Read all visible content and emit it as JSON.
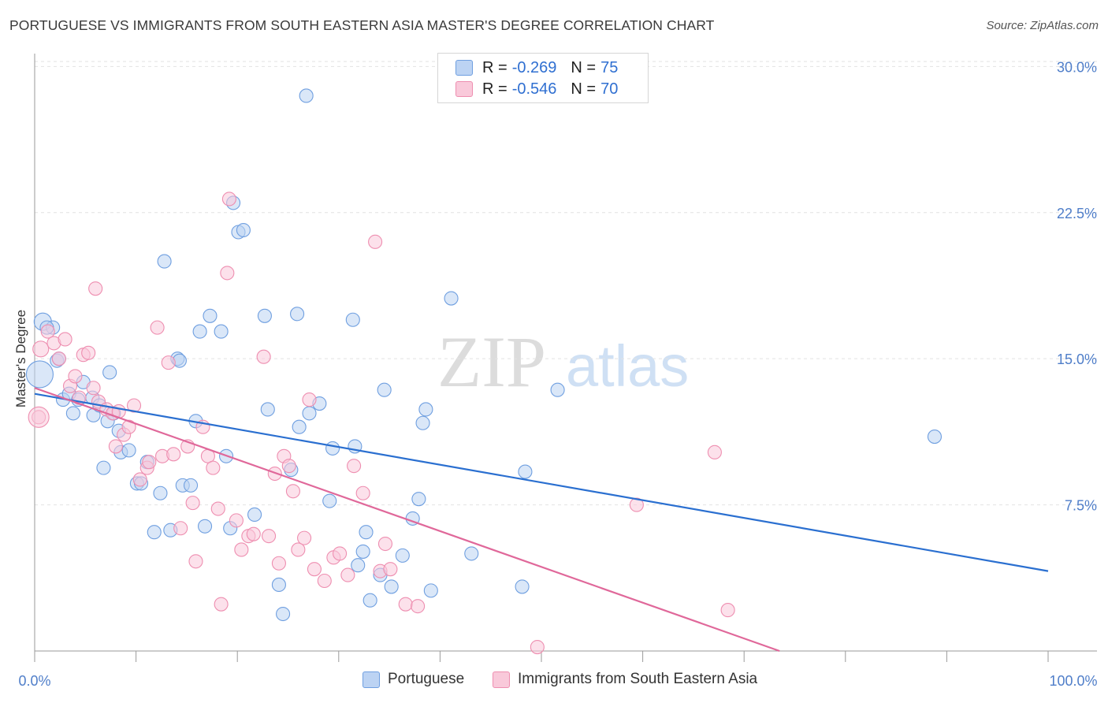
{
  "header": {
    "title": "PORTUGUESE VS IMMIGRANTS FROM SOUTH EASTERN ASIA MASTER'S DEGREE CORRELATION CHART",
    "source": "Source: ZipAtlas.com"
  },
  "legend": {
    "rows": [
      {
        "r_label": "R =",
        "r_value": "-0.269",
        "n_label": "N =",
        "n_value": "75"
      },
      {
        "r_label": "R =",
        "r_value": "-0.546",
        "n_label": "N =",
        "n_value": "70"
      }
    ]
  },
  "bottom_legend": {
    "series1": "Portuguese",
    "series2": "Immigrants from South Eastern Asia"
  },
  "watermark": {
    "zip": "ZIP",
    "atlas": "atlas"
  },
  "chart_data": {
    "type": "scatter",
    "title": "PORTUGUESE VS IMMIGRANTS FROM SOUTH EASTERN ASIA MASTER'S DEGREE CORRELATION CHART",
    "xlabel": "",
    "ylabel": "Master's Degree",
    "xlim": [
      0,
      100
    ],
    "ylim": [
      0,
      30.5
    ],
    "x_tick_labels": [
      "0.0%",
      "100.0%"
    ],
    "y_ticks": [
      7.5,
      15.0,
      22.5,
      30.0
    ],
    "y_tick_labels": [
      "7.5%",
      "15.0%",
      "22.5%",
      "30.0%"
    ],
    "colors": {
      "blue": "#6f9fe0",
      "pink": "#ee8eb0",
      "blue_line": "#2a6fd0",
      "pink_line": "#e0689a"
    },
    "series": [
      {
        "name": "Portuguese",
        "color": "blue",
        "trend": {
          "x0": 0,
          "y0": 13.2,
          "x1": 100,
          "y1": 4.1
        },
        "points": [
          [
            0.8,
            16.9
          ],
          [
            1.8,
            16.6
          ],
          [
            2.2,
            14.9
          ],
          [
            2.8,
            12.9
          ],
          [
            3.4,
            13.2
          ],
          [
            3.8,
            12.2
          ],
          [
            4.3,
            12.9
          ],
          [
            4.8,
            13.8
          ],
          [
            5.7,
            13.0
          ],
          [
            5.8,
            12.1
          ],
          [
            6.4,
            12.6
          ],
          [
            7.2,
            11.8
          ],
          [
            7.8,
            12.2
          ],
          [
            8.3,
            11.3
          ],
          [
            8.5,
            10.2
          ],
          [
            6.8,
            9.4
          ],
          [
            9.3,
            10.3
          ],
          [
            10.1,
            8.6
          ],
          [
            10.5,
            8.6
          ],
          [
            11.1,
            9.7
          ],
          [
            12.4,
            8.1
          ],
          [
            11.8,
            6.1
          ],
          [
            13.4,
            6.2
          ],
          [
            14.1,
            15.0
          ],
          [
            14.3,
            14.9
          ],
          [
            14.6,
            8.5
          ],
          [
            15.4,
            8.5
          ],
          [
            15.9,
            11.8
          ],
          [
            16.3,
            16.4
          ],
          [
            16.8,
            6.4
          ],
          [
            17.3,
            17.2
          ],
          [
            18.4,
            16.4
          ],
          [
            18.9,
            10.0
          ],
          [
            19.3,
            6.3
          ],
          [
            19.6,
            23.0
          ],
          [
            20.1,
            21.5
          ],
          [
            20.6,
            21.6
          ],
          [
            21.7,
            7.0
          ],
          [
            22.7,
            17.2
          ],
          [
            23.0,
            12.4
          ],
          [
            24.1,
            3.4
          ],
          [
            24.5,
            1.9
          ],
          [
            25.3,
            9.3
          ],
          [
            25.9,
            17.3
          ],
          [
            26.1,
            11.5
          ],
          [
            27.1,
            12.2
          ],
          [
            26.8,
            28.5
          ],
          [
            28.1,
            12.7
          ],
          [
            29.1,
            7.7
          ],
          [
            29.4,
            10.4
          ],
          [
            31.4,
            17.0
          ],
          [
            31.6,
            10.5
          ],
          [
            31.9,
            4.4
          ],
          [
            32.4,
            5.1
          ],
          [
            32.7,
            6.1
          ],
          [
            33.1,
            2.6
          ],
          [
            34.1,
            3.9
          ],
          [
            34.5,
            13.4
          ],
          [
            35.2,
            3.3
          ],
          [
            36.3,
            4.9
          ],
          [
            37.3,
            6.8
          ],
          [
            37.9,
            7.8
          ],
          [
            38.3,
            11.7
          ],
          [
            38.6,
            12.4
          ],
          [
            39.1,
            3.1
          ],
          [
            41.1,
            18.1
          ],
          [
            43.1,
            5.0
          ],
          [
            48.4,
            9.2
          ],
          [
            48.1,
            3.3
          ],
          [
            51.6,
            13.4
          ],
          [
            88.8,
            11.0
          ],
          [
            12.8,
            20.0
          ],
          [
            7.4,
            14.3
          ],
          [
            1.2,
            16.6
          ],
          [
            2.4,
            15.0
          ]
        ]
      },
      {
        "name": "Immigrants from South Eastern Asia",
        "color": "pink",
        "trend": {
          "x0": 0,
          "y0": 13.5,
          "x1": 73.5,
          "y1": 0
        },
        "points": [
          [
            0.6,
            15.5
          ],
          [
            1.3,
            16.4
          ],
          [
            1.9,
            15.8
          ],
          [
            2.4,
            15.0
          ],
          [
            3.0,
            16.0
          ],
          [
            3.5,
            13.6
          ],
          [
            4.0,
            14.1
          ],
          [
            4.4,
            13.0
          ],
          [
            4.8,
            15.2
          ],
          [
            5.3,
            15.3
          ],
          [
            5.8,
            13.5
          ],
          [
            6.3,
            12.8
          ],
          [
            7.1,
            12.4
          ],
          [
            7.7,
            12.2
          ],
          [
            8.3,
            12.3
          ],
          [
            8.8,
            11.1
          ],
          [
            9.3,
            11.5
          ],
          [
            9.8,
            12.6
          ],
          [
            10.4,
            8.8
          ],
          [
            11.1,
            9.4
          ],
          [
            11.3,
            9.7
          ],
          [
            12.1,
            16.6
          ],
          [
            12.6,
            10.0
          ],
          [
            13.2,
            14.8
          ],
          [
            13.7,
            10.1
          ],
          [
            14.4,
            6.3
          ],
          [
            15.1,
            10.5
          ],
          [
            15.6,
            7.6
          ],
          [
            15.9,
            4.6
          ],
          [
            16.6,
            11.5
          ],
          [
            17.1,
            10.0
          ],
          [
            17.6,
            9.4
          ],
          [
            18.1,
            7.3
          ],
          [
            18.4,
            2.4
          ],
          [
            19.0,
            19.4
          ],
          [
            19.2,
            23.2
          ],
          [
            19.9,
            6.7
          ],
          [
            20.4,
            5.2
          ],
          [
            21.1,
            5.9
          ],
          [
            21.6,
            6.0
          ],
          [
            22.6,
            15.1
          ],
          [
            23.1,
            5.9
          ],
          [
            23.7,
            9.1
          ],
          [
            24.1,
            4.5
          ],
          [
            24.6,
            10.0
          ],
          [
            25.1,
            9.5
          ],
          [
            25.5,
            8.2
          ],
          [
            26.0,
            5.2
          ],
          [
            26.6,
            5.8
          ],
          [
            27.6,
            4.2
          ],
          [
            27.1,
            12.9
          ],
          [
            28.6,
            3.6
          ],
          [
            29.5,
            4.8
          ],
          [
            30.1,
            5.0
          ],
          [
            30.9,
            3.9
          ],
          [
            31.5,
            9.5
          ],
          [
            32.4,
            8.1
          ],
          [
            33.6,
            21.0
          ],
          [
            34.1,
            4.1
          ],
          [
            34.6,
            5.5
          ],
          [
            35.1,
            4.2
          ],
          [
            36.6,
            2.4
          ],
          [
            37.8,
            2.3
          ],
          [
            49.6,
            0.2
          ],
          [
            59.4,
            7.5
          ],
          [
            68.4,
            2.1
          ],
          [
            67.1,
            10.2
          ],
          [
            0.4,
            12.0
          ],
          [
            8.0,
            10.5
          ],
          [
            6.0,
            18.6
          ]
        ]
      }
    ]
  }
}
